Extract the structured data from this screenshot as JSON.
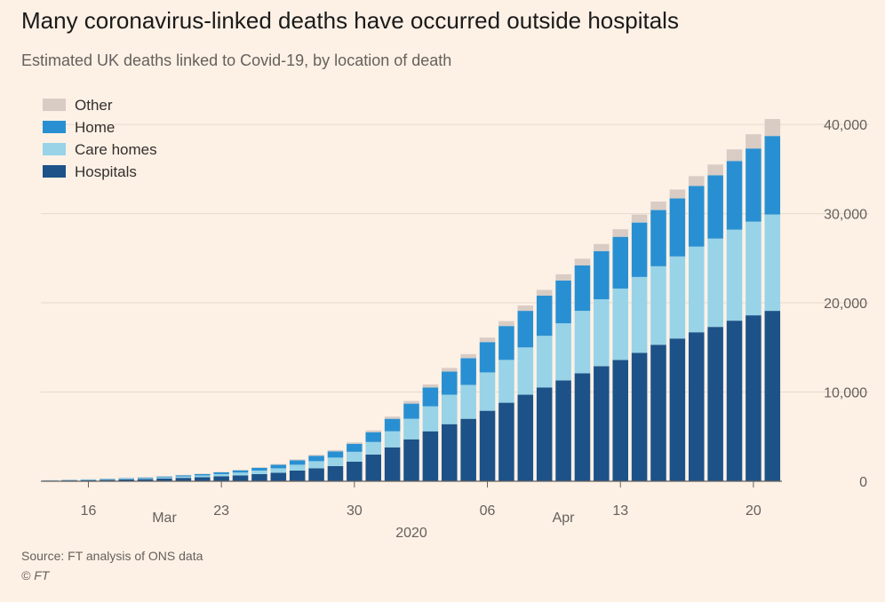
{
  "header": {
    "title": "Many coronavirus-linked deaths have occurred outside hospitals",
    "subtitle": "Estimated UK deaths linked to Covid-19, by location of death"
  },
  "footer": {
    "source": "Source: FT analysis of ONS data",
    "copyright": "© FT"
  },
  "colors": {
    "background": "#fdf1e6",
    "hospitals": "#1d5288",
    "care_homes": "#98d3e8",
    "home": "#2890d2",
    "other": "#d8ccc5",
    "gridline": "#e6d9ce",
    "axis": "#66605c",
    "tick_text": "#66605c"
  },
  "chart_data": {
    "type": "bar",
    "stacked": true,
    "ylim": [
      0,
      42000
    ],
    "yticks": [
      0,
      10000,
      20000,
      30000,
      40000
    ],
    "ytick_labels": [
      "0",
      "10,000",
      "20,000",
      "30,000",
      "40,000"
    ],
    "categories": [
      "Mar 14",
      "Mar 15",
      "Mar 16",
      "Mar 17",
      "Mar 18",
      "Mar 19",
      "Mar 20",
      "Mar 21",
      "Mar 22",
      "Mar 23",
      "Mar 24",
      "Mar 25",
      "Mar 26",
      "Mar 27",
      "Mar 28",
      "Mar 29",
      "Mar 30",
      "Mar 31",
      "Apr 01",
      "Apr 02",
      "Apr 03",
      "Apr 04",
      "Apr 05",
      "Apr 06",
      "Apr 07",
      "Apr 08",
      "Apr 09",
      "Apr 10",
      "Apr 11",
      "Apr 12",
      "Apr 13",
      "Apr 14",
      "Apr 15",
      "Apr 16",
      "Apr 17",
      "Apr 18",
      "Apr 19",
      "Apr 20",
      "Apr 21"
    ],
    "x_tick_labels": [
      {
        "index": 2,
        "label": "16"
      },
      {
        "index": 9,
        "label": "23"
      },
      {
        "index": 16,
        "label": "30"
      },
      {
        "index": 23,
        "label": "06"
      },
      {
        "index": 30,
        "label": "13"
      },
      {
        "index": 37,
        "label": "20"
      }
    ],
    "month_labels": [
      {
        "index": 6,
        "label": "Mar"
      },
      {
        "index": 27,
        "label": "Apr"
      }
    ],
    "year_label": {
      "index": 19,
      "label": "2020"
    },
    "series": [
      {
        "name": "Hospitals",
        "color_key": "hospitals",
        "values": [
          60,
          90,
          120,
          150,
          200,
          240,
          300,
          380,
          450,
          550,
          650,
          800,
          950,
          1200,
          1450,
          1700,
          2200,
          3000,
          3800,
          4700,
          5600,
          6400,
          7000,
          7900,
          8800,
          9700,
          10500,
          11300,
          12100,
          12900,
          13600,
          14400,
          15300,
          16000,
          16700,
          17300,
          18000,
          18600,
          19100
        ]
      },
      {
        "name": "Care homes",
        "color_key": "care_homes",
        "values": [
          30,
          40,
          50,
          60,
          80,
          100,
          130,
          160,
          200,
          250,
          320,
          400,
          500,
          650,
          800,
          950,
          1100,
          1400,
          1800,
          2300,
          2800,
          3300,
          3800,
          4300,
          4800,
          5300,
          5800,
          6400,
          7000,
          7500,
          8000,
          8500,
          8800,
          9200,
          9600,
          9900,
          10200,
          10500,
          10800
        ]
      },
      {
        "name": "Home",
        "color_key": "home",
        "values": [
          20,
          30,
          40,
          50,
          60,
          80,
          100,
          130,
          160,
          200,
          250,
          300,
          400,
          500,
          600,
          700,
          900,
          1100,
          1400,
          1700,
          2100,
          2600,
          3000,
          3400,
          3800,
          4100,
          4500,
          4800,
          5100,
          5400,
          5800,
          6100,
          6300,
          6500,
          6800,
          7100,
          7700,
          8200,
          8800
        ]
      },
      {
        "name": "Other",
        "color_key": "other",
        "values": [
          10,
          10,
          20,
          20,
          30,
          30,
          40,
          40,
          50,
          50,
          60,
          70,
          80,
          100,
          120,
          140,
          160,
          200,
          250,
          300,
          350,
          400,
          450,
          500,
          550,
          600,
          650,
          700,
          750,
          800,
          850,
          900,
          950,
          1000,
          1100,
          1200,
          1300,
          1600,
          1900
        ]
      }
    ],
    "legend": {
      "position": "top-left",
      "entries": [
        {
          "label": "Other",
          "color_key": "other"
        },
        {
          "label": "Home",
          "color_key": "home"
        },
        {
          "label": "Care homes",
          "color_key": "care_homes"
        },
        {
          "label": "Hospitals",
          "color_key": "hospitals"
        }
      ]
    }
  }
}
